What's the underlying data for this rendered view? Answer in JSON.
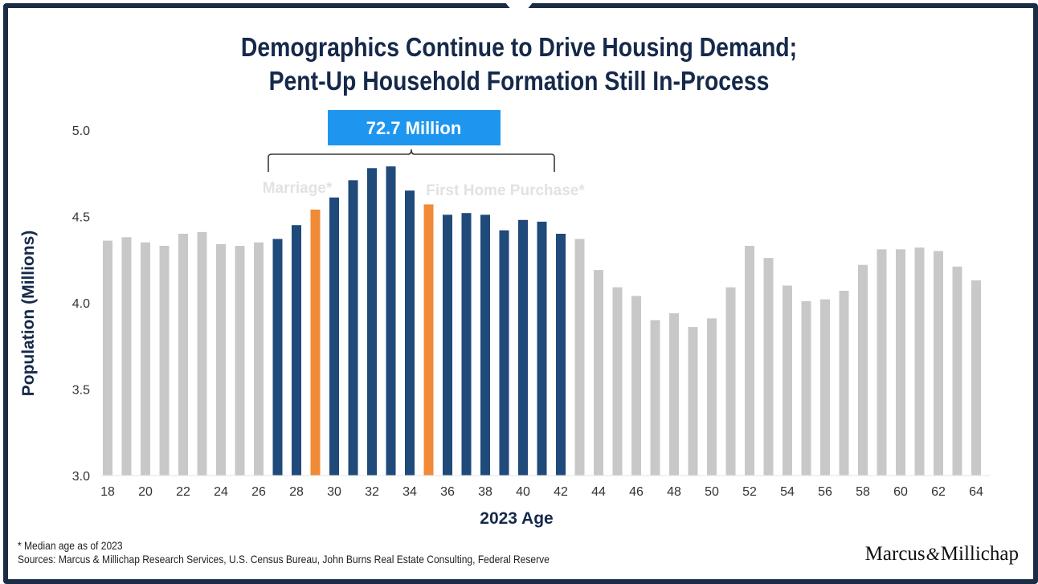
{
  "title": {
    "line1": "Demographics Continue to Drive Housing Demand;",
    "line2": "Pent-Up Household Formation Still In-Process"
  },
  "callout": {
    "label": "72.7 Million",
    "marriage_label": "Marriage*",
    "first_home_label": "First Home Purchase*"
  },
  "footnote": {
    "median": "* Median age as of 2023",
    "sources": "Sources: Marcus & Millichap Research Services, U.S. Census Bureau, John Burns Real Estate Consulting, Federal Reserve"
  },
  "logo": {
    "left": "Marcus",
    "amp": "&",
    "right": "Millichap"
  },
  "colors": {
    "gray": "#c8c8c8",
    "navy": "#1f4a7a",
    "orange": "#f08a37",
    "callout": "#1e96f0",
    "text_dark": "#15294a"
  },
  "chart_data": {
    "type": "bar",
    "xlabel": "2023 Age",
    "ylabel": "Population (Millions)",
    "ylim": [
      3.0,
      5.0
    ],
    "yticks": [
      "3.0",
      "3.5",
      "4.0",
      "4.5",
      "5.0"
    ],
    "grid": false,
    "categories": [
      18,
      19,
      20,
      21,
      22,
      23,
      24,
      25,
      26,
      27,
      28,
      29,
      30,
      31,
      32,
      33,
      34,
      35,
      36,
      37,
      38,
      39,
      40,
      41,
      42,
      43,
      44,
      45,
      46,
      47,
      48,
      49,
      50,
      51,
      52,
      53,
      54,
      55,
      56,
      57,
      58,
      59,
      60,
      61,
      62,
      63,
      64
    ],
    "xtick_labels": [
      "18",
      "20",
      "22",
      "24",
      "26",
      "28",
      "30",
      "32",
      "34",
      "36",
      "38",
      "40",
      "42",
      "44",
      "46",
      "48",
      "50",
      "52",
      "54",
      "56",
      "58",
      "60",
      "62",
      "64"
    ],
    "values": [
      4.36,
      4.38,
      4.35,
      4.33,
      4.4,
      4.41,
      4.34,
      4.33,
      4.35,
      4.37,
      4.45,
      4.54,
      4.61,
      4.71,
      4.78,
      4.79,
      4.65,
      4.57,
      4.51,
      4.52,
      4.51,
      4.42,
      4.48,
      4.47,
      4.4,
      4.37,
      4.19,
      4.09,
      4.04,
      3.9,
      3.94,
      3.86,
      3.91,
      4.09,
      4.33,
      4.26,
      4.1,
      4.01,
      4.02,
      4.07,
      4.22,
      4.31,
      4.31,
      4.32,
      4.3,
      4.21,
      4.13
    ],
    "highlight": {
      "range": [
        27,
        42
      ],
      "median_ages": [
        29,
        35
      ]
    }
  }
}
